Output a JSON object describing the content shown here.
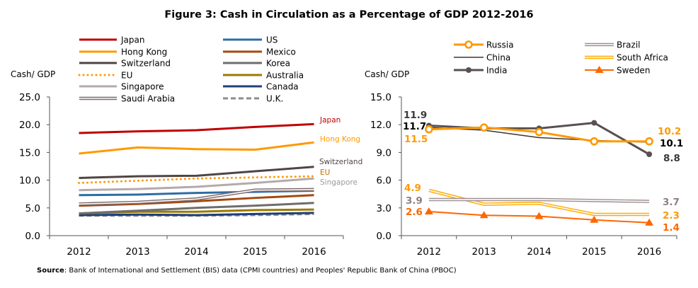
{
  "title": "Figure 3: Cash in Circulation as a Percentage of GDP 2012-2016",
  "source_label": "Source",
  "source_text": ": Bank of International and Settlement (BIS) data (CPMI countries) and Peoples' Republic Bank of China (PBOC)",
  "chart_data": [
    {
      "type": "line",
      "ylabel": "Cash/ GDP",
      "categories": [
        "2012",
        "2013",
        "2014",
        "2015",
        "2016"
      ],
      "ylim": [
        0,
        25
      ],
      "yticks": [
        "0.0",
        "5.0",
        "10.0",
        "15.0",
        "20.0",
        "25.0"
      ],
      "legend_placement": "top",
      "grid": false,
      "series": [
        {
          "name": "Japan",
          "color": "#C00000",
          "style": "solid",
          "values": [
            18.5,
            18.8,
            19.0,
            19.6,
            20.1
          ],
          "end_label": "Japan"
        },
        {
          "name": "Hong Kong",
          "color": "#FF9900",
          "style": "solid",
          "values": [
            14.8,
            15.9,
            15.6,
            15.5,
            16.8
          ],
          "end_label": "Hong Kong"
        },
        {
          "name": "Switzerland",
          "color": "#504444",
          "style": "solid",
          "values": [
            10.4,
            10.7,
            10.8,
            11.6,
            12.4
          ],
          "end_label": "Switzerland"
        },
        {
          "name": "EU",
          "color": "#FF9900",
          "style": "dotted",
          "values": [
            9.5,
            9.9,
            10.3,
            10.5,
            10.7
          ],
          "end_label": "EU",
          "end_label_color": "#C07000"
        },
        {
          "name": "Singapore",
          "color": "#B5AAAA",
          "style": "solid",
          "values": [
            8.2,
            8.4,
            8.8,
            9.5,
            10.3
          ],
          "end_label": "Singapore",
          "end_label_color": "#9A9A9A"
        },
        {
          "name": "Saudi Arabia",
          "color": "#7F6A6A",
          "style": "double",
          "values": [
            5.7,
            6.0,
            6.6,
            8.2,
            8.3
          ]
        },
        {
          "name": "US",
          "color": "#2E6DA4",
          "style": "solid",
          "values": [
            7.3,
            7.4,
            7.7,
            7.9,
            8.1
          ]
        },
        {
          "name": "Mexico",
          "color": "#A5490E",
          "style": "solid",
          "values": [
            5.4,
            5.7,
            6.2,
            6.8,
            7.3
          ]
        },
        {
          "name": "Korea",
          "color": "#6D6D6D",
          "style": "solid",
          "values": [
            4.0,
            4.5,
            5.0,
            5.4,
            5.9
          ]
        },
        {
          "name": "Australia",
          "color": "#9C7A00",
          "style": "solid",
          "values": [
            4.0,
            4.3,
            4.3,
            4.6,
            4.7
          ]
        },
        {
          "name": "Canada",
          "color": "#1F3F7A",
          "style": "solid",
          "values": [
            3.7,
            3.8,
            3.7,
            3.9,
            4.1
          ]
        },
        {
          "name": "U.K.",
          "color": "#8C8C8C",
          "style": "dashed",
          "values": [
            3.6,
            3.6,
            3.6,
            3.7,
            3.9
          ]
        }
      ]
    },
    {
      "type": "line",
      "ylabel": "Cash/ GDP",
      "categories": [
        "2012",
        "2013",
        "2014",
        "2015",
        "2016"
      ],
      "ylim": [
        0,
        15
      ],
      "yticks": [
        "0.0",
        "3.0",
        "6.0",
        "9.0",
        "12.0",
        "15.0"
      ],
      "legend_placement": "top",
      "grid": false,
      "series": [
        {
          "name": "Russia",
          "color": "#FF9900",
          "style": "solid",
          "marker": "open-circle",
          "values": [
            11.5,
            11.7,
            11.2,
            10.2,
            10.2
          ],
          "labels": {
            "first": "11.5",
            "last": "10.2"
          },
          "label_color": "#FF9900"
        },
        {
          "name": "China",
          "color": "#3D3535",
          "style": "thin",
          "values": [
            11.7,
            11.4,
            10.6,
            10.3,
            10.1
          ],
          "labels": {
            "first": "11.7",
            "last": "10.1"
          },
          "label_color": "#000000"
        },
        {
          "name": "India",
          "color": "#595050",
          "style": "solid",
          "marker": "filled-circle",
          "values": [
            11.9,
            11.6,
            11.6,
            12.2,
            8.8
          ],
          "labels": {
            "first": "11.9",
            "last": "8.8"
          },
          "label_color": "#3F3838"
        },
        {
          "name": "Brazil",
          "color": "#9F9090",
          "style": "double",
          "values": [
            3.9,
            3.9,
            3.9,
            3.8,
            3.7
          ],
          "labels": {
            "first": "3.9",
            "last": "3.7"
          },
          "label_color": "#8F8080"
        },
        {
          "name": "South Africa",
          "color": "#FFAA00",
          "style": "double",
          "values": [
            4.9,
            3.4,
            3.5,
            2.3,
            2.3
          ],
          "labels": {
            "first": "4.9",
            "last": "2.3"
          },
          "label_color": "#FF9900"
        },
        {
          "name": "Sweden",
          "color": "#FF6600",
          "style": "solid-thin",
          "marker": "triangle",
          "values": [
            2.6,
            2.2,
            2.1,
            1.7,
            1.4
          ],
          "labels": {
            "first": "2.6",
            "last": "1.4"
          },
          "label_color": "#FF6600"
        }
      ]
    }
  ]
}
